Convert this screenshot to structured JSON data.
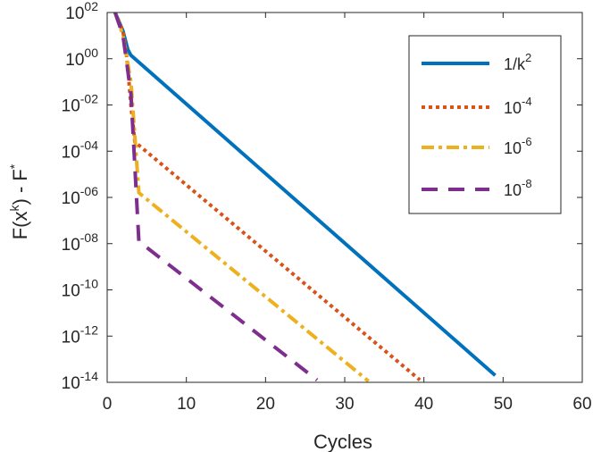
{
  "chart_data": {
    "type": "line",
    "title": "",
    "xlabel": "Cycles",
    "ylabel": {
      "base": "F(x",
      "sup1": "k",
      "mid": ") - F",
      "sup2": "*"
    },
    "xlim": [
      0,
      60
    ],
    "ylim_exponent": [
      -14,
      2
    ],
    "y_scale": "log",
    "x_ticks": [
      "0",
      "10",
      "20",
      "30",
      "40",
      "50",
      "60"
    ],
    "y_ticks": [
      {
        "exp": -14,
        "base": "10",
        "sup": "-14"
      },
      {
        "exp": -12,
        "base": "10",
        "sup": "-12"
      },
      {
        "exp": -10,
        "base": "10",
        "sup": "-10"
      },
      {
        "exp": -8,
        "base": "10",
        "sup": "-08"
      },
      {
        "exp": -6,
        "base": "10",
        "sup": "-06"
      },
      {
        "exp": -4,
        "base": "10",
        "sup": "-04"
      },
      {
        "exp": -2,
        "base": "10",
        "sup": "-02"
      },
      {
        "exp": 0,
        "base": "10",
        "sup": "00"
      },
      {
        "exp": 2,
        "base": "10",
        "sup": "02"
      }
    ],
    "legend_position": "top-right",
    "series": [
      {
        "name": "1/k^2",
        "label_base": "1/k",
        "label_sup": "2",
        "color": "#0072BD",
        "dash": "solid",
        "points": [
          [
            1,
            2
          ],
          [
            2,
            1.2
          ],
          [
            2.6,
            0.4
          ],
          [
            3,
            0.15
          ],
          [
            49,
            -13.7
          ]
        ]
      },
      {
        "name": "10^-4",
        "label_base": "10",
        "label_sup": "-4",
        "color": "#D95319",
        "dash": "dotted",
        "points": [
          [
            1,
            2
          ],
          [
            2,
            1.2
          ],
          [
            2.5,
            0
          ],
          [
            3,
            -2
          ],
          [
            3.5,
            -3.6
          ],
          [
            39.5,
            -13.9
          ]
        ]
      },
      {
        "name": "10^-6",
        "label_base": "10",
        "label_sup": "-6",
        "color": "#EDB120",
        "dash": "dashdot",
        "points": [
          [
            1,
            2
          ],
          [
            2,
            1.0
          ],
          [
            3,
            -1
          ],
          [
            4,
            -5.8
          ],
          [
            33,
            -13.95
          ]
        ]
      },
      {
        "name": "10^-8",
        "label_base": "10",
        "label_sup": "-8",
        "color": "#7E2F8E",
        "dash": "dashed",
        "points": [
          [
            1,
            2
          ],
          [
            2,
            1.0
          ],
          [
            3,
            -1.5
          ],
          [
            4,
            -7.9
          ],
          [
            26.5,
            -13.9
          ]
        ]
      }
    ]
  }
}
